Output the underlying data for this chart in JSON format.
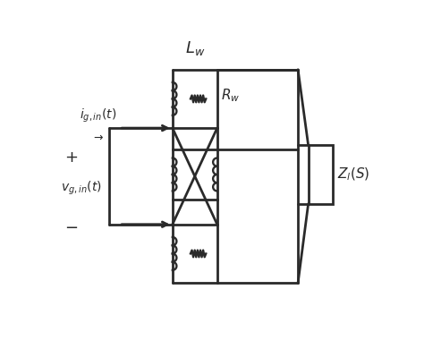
{
  "bg_color": "#ffffff",
  "line_color": "#2a2a2a",
  "line_width": 2.0,
  "fig_width": 4.74,
  "fig_height": 3.9,
  "label_Lw": "$L_w$",
  "label_Rw": "$R_w$",
  "label_Zl": "$Z_l(S)$",
  "label_ig": "$i_{g,in}(t)$",
  "label_vg": "$v_{g,in}(t)$",
  "label_plus": "$+$",
  "label_minus": "$-$"
}
